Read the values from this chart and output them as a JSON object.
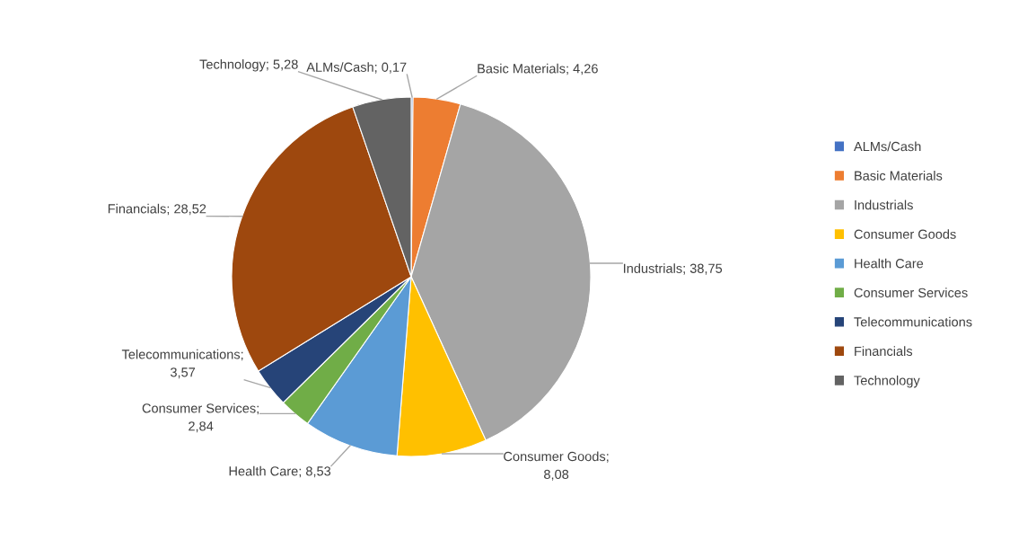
{
  "chart_data": {
    "type": "pie",
    "categories": [
      "ALMs/Cash",
      "Basic Materials",
      "Industrials",
      "Consumer Goods",
      "Health Care",
      "Consumer Services",
      "Telecommunications",
      "Financials",
      "Technology"
    ],
    "values": [
      0.17,
      4.26,
      38.75,
      8.08,
      8.53,
      2.84,
      3.57,
      28.52,
      5.28
    ],
    "value_labels": [
      "ALMs/Cash; 0,17",
      "Basic Materials; 4,26",
      "Industrials; 38,75",
      "Consumer Goods; 8,08",
      "Health Care; 8,53",
      "Consumer Services; 2,84",
      "Telecommunications; 3,57",
      "Financials; 28,52",
      "Technology; 5,28"
    ],
    "colors": [
      "#4472c4",
      "#ed7d31",
      "#a5a5a5",
      "#ffc000",
      "#5b9bd5",
      "#70ad47",
      "#264478",
      "#9e480e",
      "#636363"
    ],
    "legend": "right"
  }
}
